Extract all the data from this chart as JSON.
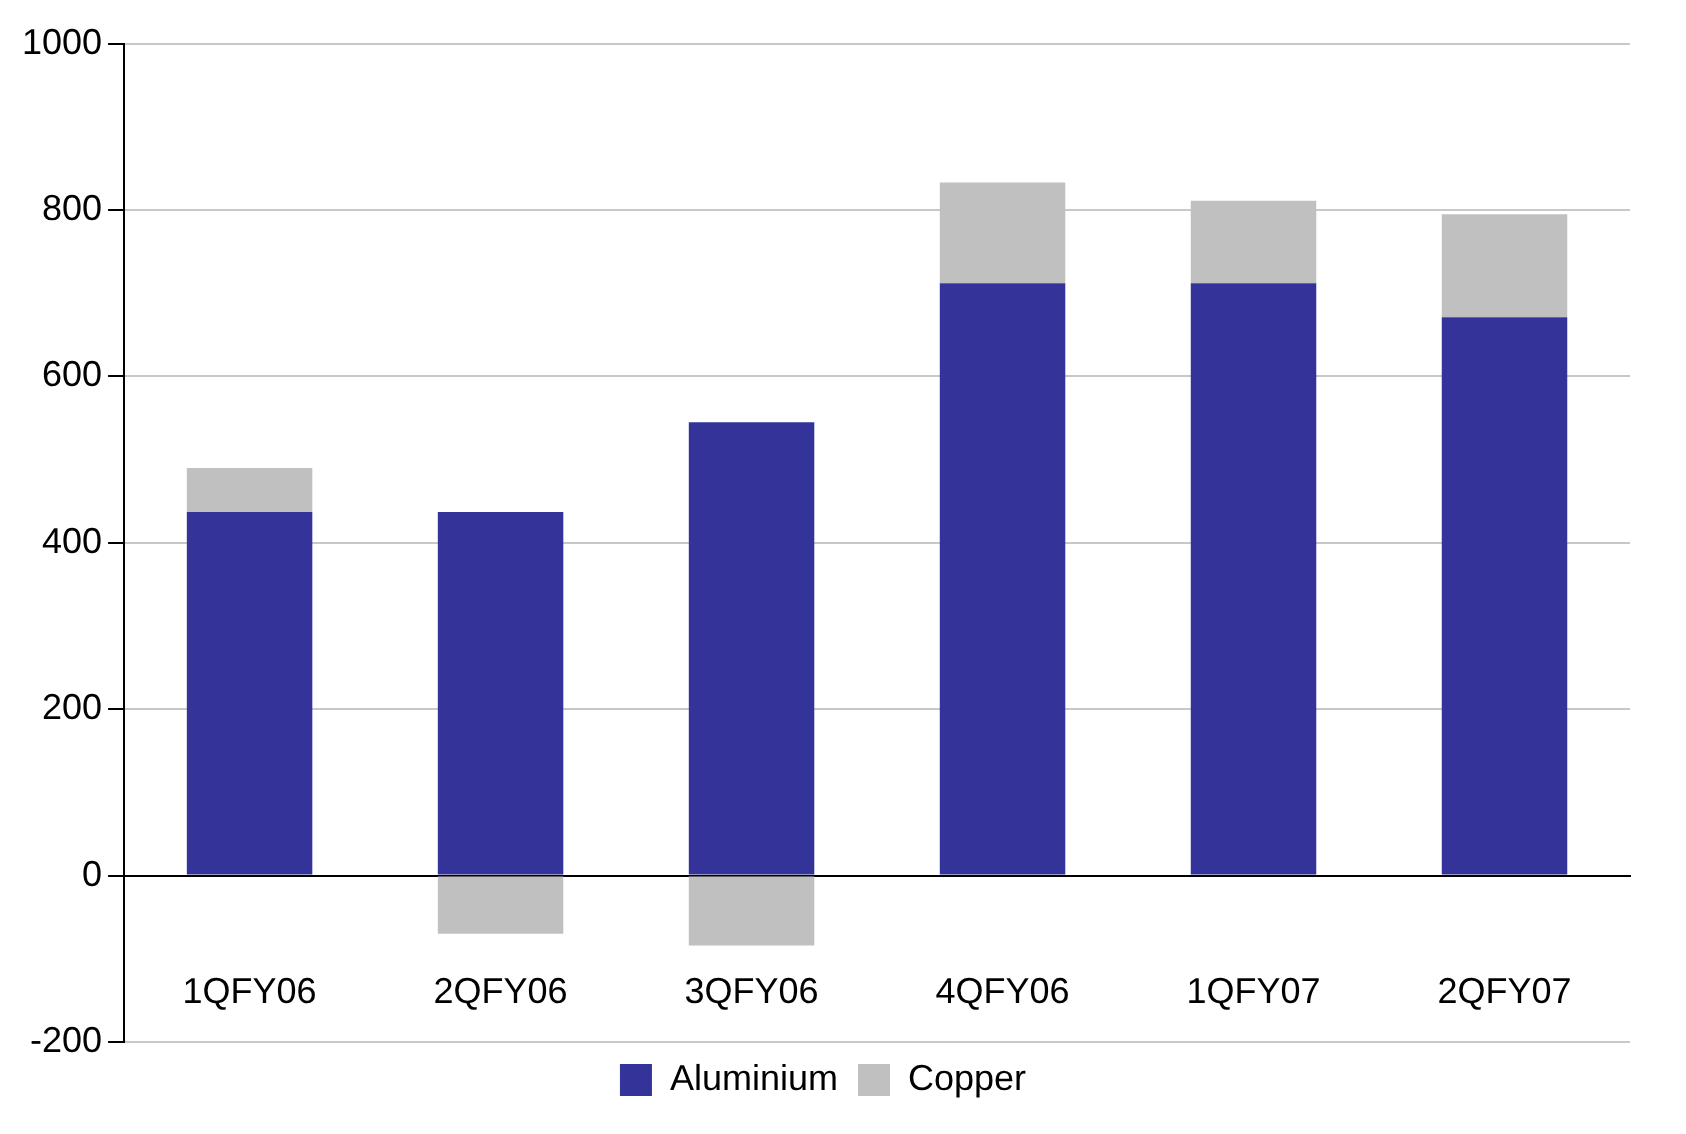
{
  "chart_data": {
    "type": "bar",
    "stacked": true,
    "categories": [
      "1QFY06",
      "2QFY06",
      "3QFY06",
      "4QFY06",
      "1QFY07",
      "2QFY07"
    ],
    "series": [
      {
        "name": "Aluminium",
        "color": "#333399",
        "values": [
          437,
          437,
          545,
          712,
          712,
          671
        ]
      },
      {
        "name": "Copper",
        "color": "#c0c0c0",
        "values": [
          53,
          -70,
          -84,
          121,
          99,
          124
        ]
      }
    ],
    "ylim": [
      -200,
      1000
    ],
    "yticks": [
      -200,
      0,
      200,
      400,
      600,
      800,
      1000
    ],
    "grid": "y",
    "legend": "bottom"
  }
}
